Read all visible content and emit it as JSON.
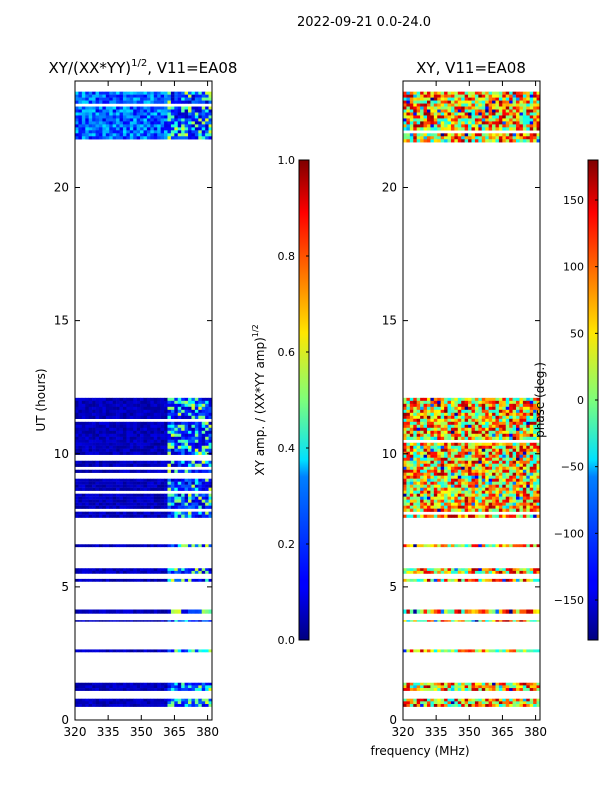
{
  "figure_title": "2022-09-21 0.0-24.0",
  "shared_xlabel": "frequency (MHz)",
  "chart_data": [
    {
      "type": "heatmap",
      "title": "XY/(XX*YY)^{1/2}, V11=EA08",
      "title_main": "XY/(XX*YY)",
      "title_exp": "1/2",
      "title_rest": ", V11=EA08",
      "ylabel": "UT (hours)",
      "xlim": [
        320,
        382
      ],
      "ylim": [
        0,
        24
      ],
      "xticks": [
        320,
        335,
        350,
        365,
        380
      ],
      "yticks": [
        0,
        5,
        10,
        15,
        20
      ],
      "colorbar": {
        "label": "XY amp. / (XX*YY amp)^{1/2}",
        "label_main": "XY amp. / (XX*YY amp)",
        "label_exp": "1/2",
        "range": [
          0.0,
          1.0
        ],
        "ticks": [
          "0.0",
          "0.2",
          "0.4",
          "0.6",
          "0.8",
          "1.0"
        ],
        "tick_values": [
          0.0,
          0.2,
          0.4,
          0.6,
          0.8,
          1.0
        ],
        "colormap": "jet"
      },
      "data_bands_hours": [
        [
          0.5,
          0.8
        ],
        [
          1.1,
          1.4
        ],
        [
          2.55,
          2.65
        ],
        [
          3.7,
          3.75
        ],
        [
          4.0,
          4.15
        ],
        [
          5.2,
          5.3
        ],
        [
          5.5,
          5.7
        ],
        [
          6.5,
          6.6
        ],
        [
          7.6,
          12.1
        ],
        [
          21.7,
          23.6
        ]
      ],
      "bright_freq_range_mhz": [
        362,
        382
      ]
    },
    {
      "type": "heatmap",
      "title": "XY, V11=EA08",
      "xlim": [
        320,
        382
      ],
      "ylim": [
        0,
        24
      ],
      "xticks": [
        320,
        335,
        350,
        365,
        380
      ],
      "yticks": [
        0,
        5,
        10,
        15,
        20
      ],
      "colorbar": {
        "label": "phase (deg.)",
        "range": [
          -180,
          180
        ],
        "ticks": [
          "150",
          "100",
          "50",
          "0",
          "−50",
          "−100",
          "−150"
        ],
        "tick_values": [
          150,
          100,
          50,
          0,
          -50,
          -100,
          -150
        ],
        "colormap": "jet"
      },
      "data_bands_hours": [
        [
          0.5,
          0.8
        ],
        [
          1.1,
          1.4
        ],
        [
          2.55,
          2.65
        ],
        [
          3.7,
          3.75
        ],
        [
          4.0,
          4.15
        ],
        [
          5.2,
          5.3
        ],
        [
          5.5,
          5.7
        ],
        [
          6.5,
          6.6
        ],
        [
          7.6,
          12.1
        ],
        [
          21.7,
          23.6
        ]
      ]
    }
  ]
}
